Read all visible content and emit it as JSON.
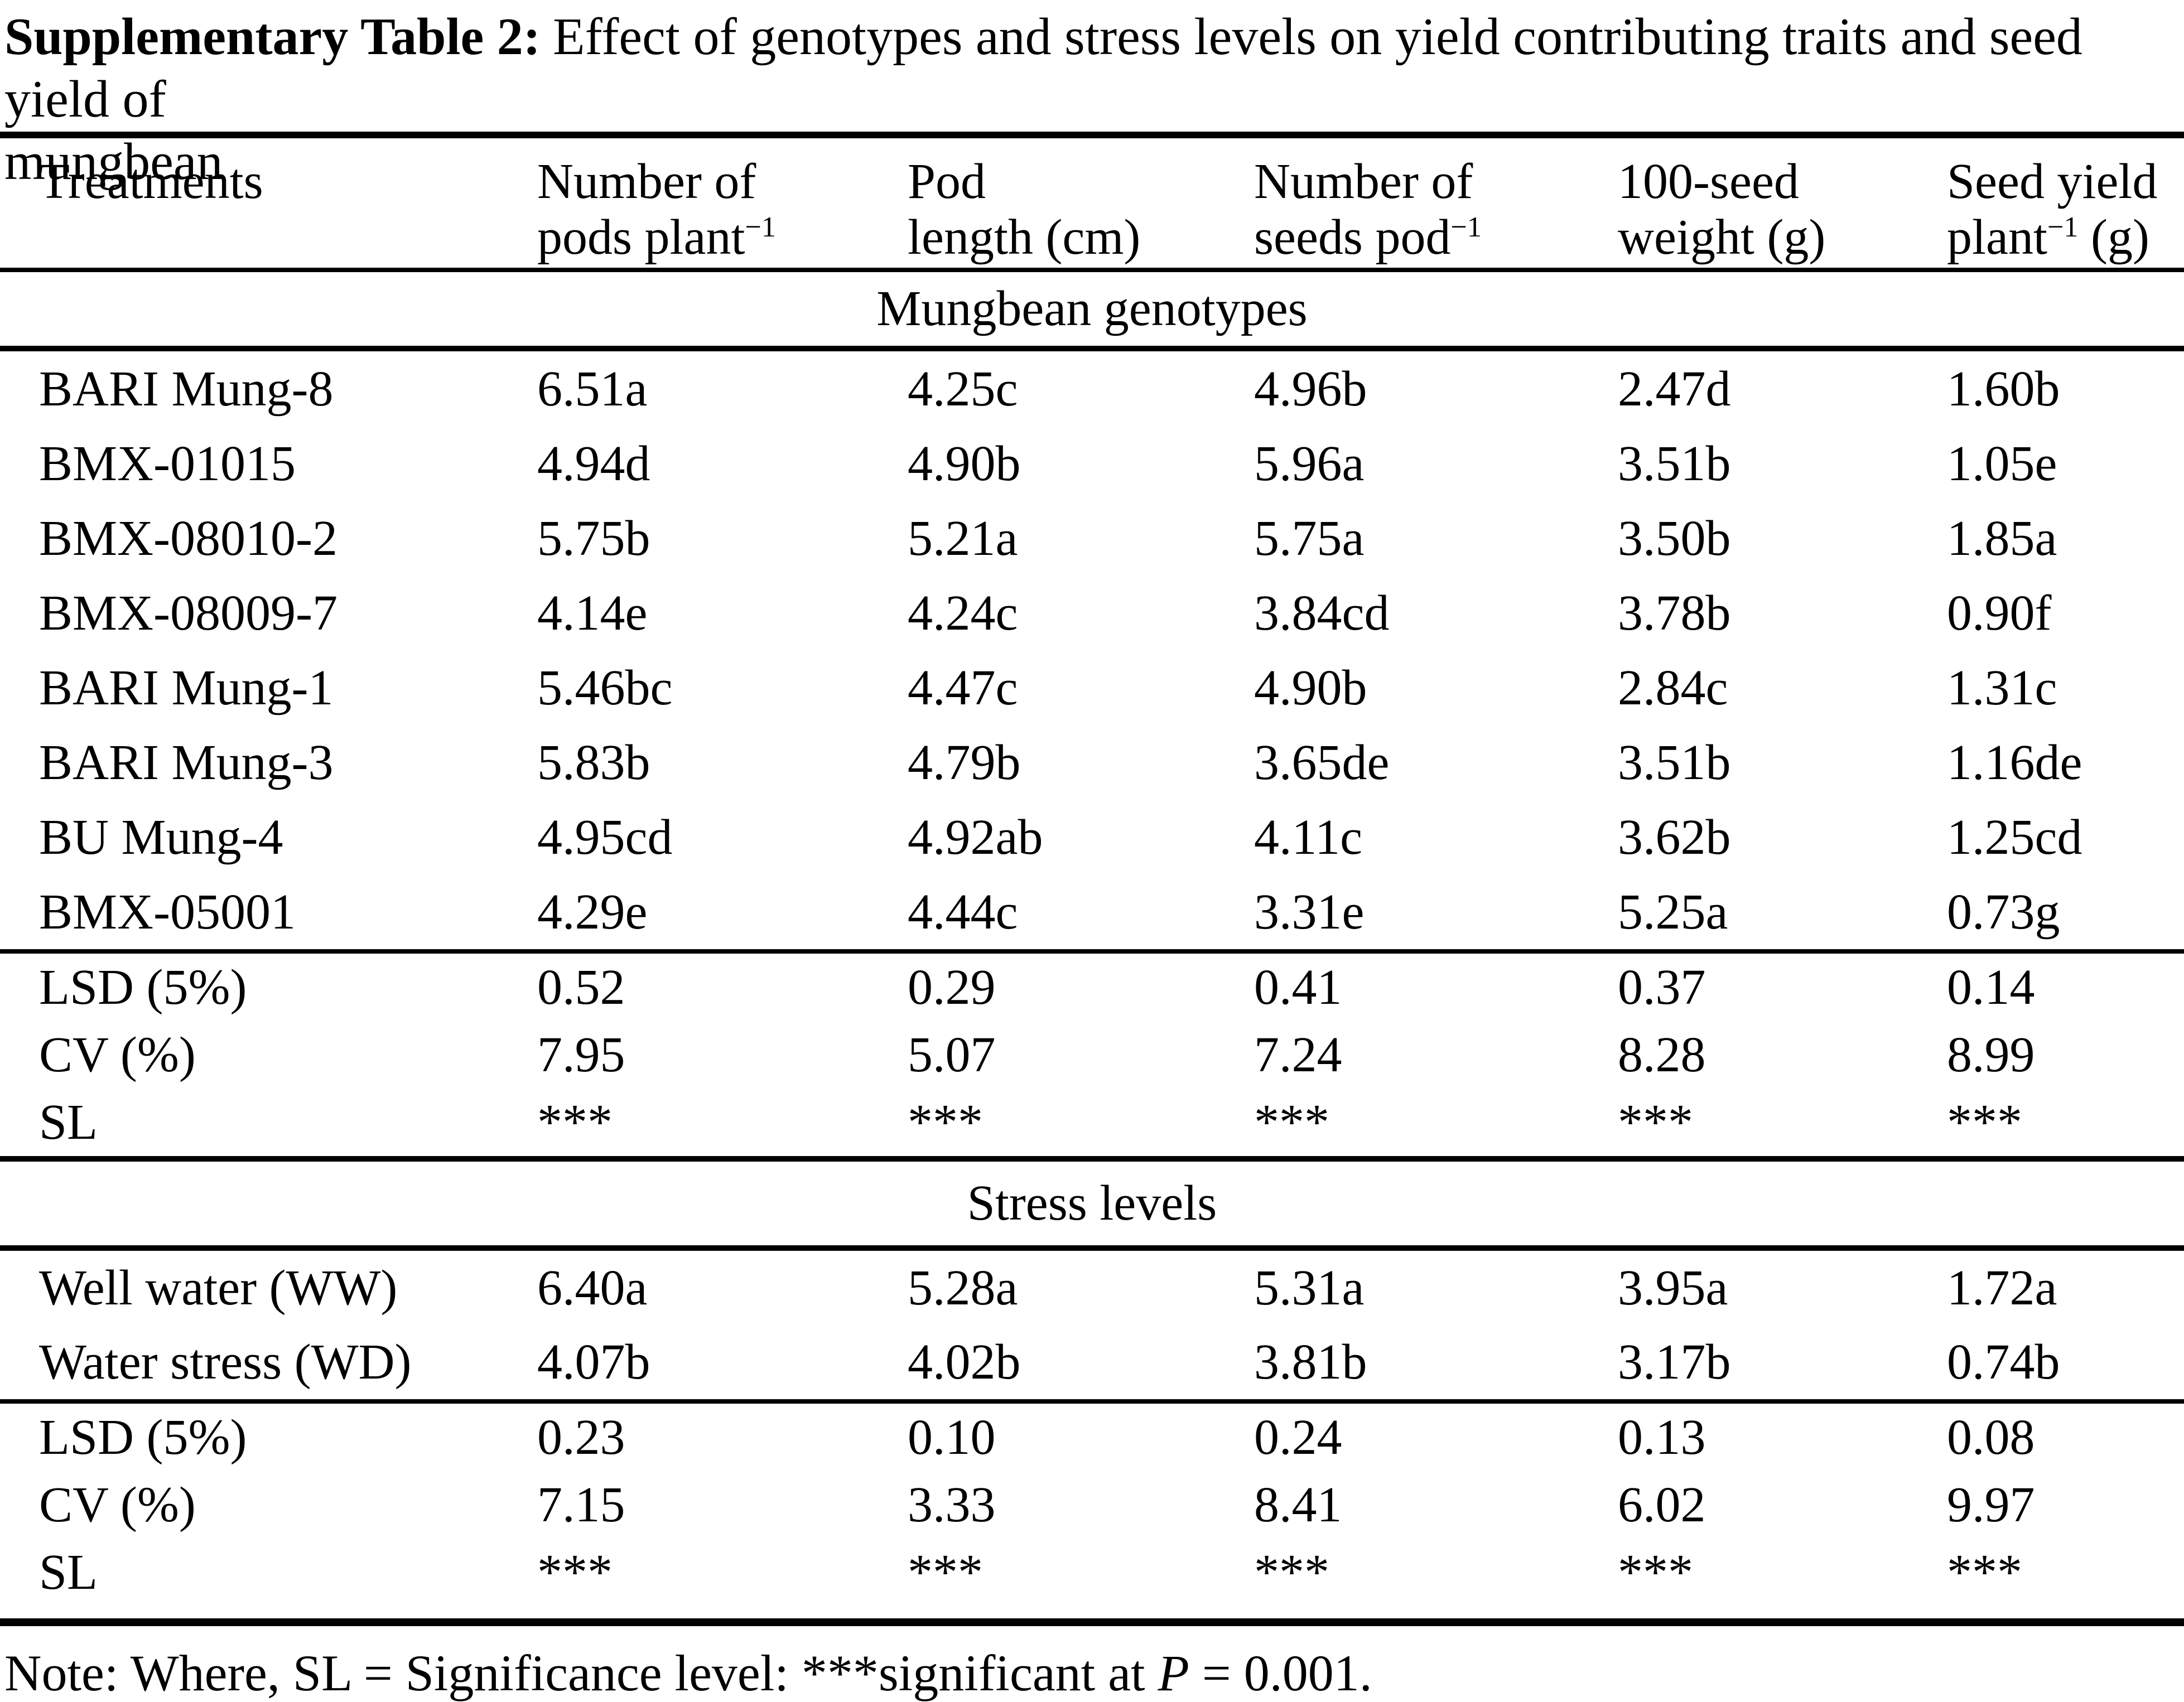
{
  "title": {
    "label": "Supplementary Table 2:",
    "rest_line1": "Effect of genotypes and stress levels on yield contributing traits and seed yield of",
    "rest_line2": "mungbean"
  },
  "table": {
    "headers": {
      "col0": {
        "line1": "Treatments",
        "line2": "",
        "sup": "",
        "post": ""
      },
      "col1": {
        "line1": "Number of",
        "line2": "pods plant",
        "sup": "−1",
        "post": ""
      },
      "col2": {
        "line1": "Pod",
        "line2": "length (cm)",
        "sup": "",
        "post": ""
      },
      "col3": {
        "line1": "Number of",
        "line2": "seeds pod",
        "sup": "−1",
        "post": ""
      },
      "col4": {
        "line1": "100-seed",
        "line2": "weight (g)",
        "sup": "",
        "post": ""
      },
      "col5": {
        "line1": "Seed yield",
        "line2": "plant",
        "sup": "−1",
        "post": " (g)"
      }
    },
    "section1": {
      "title": "Mungbean genotypes"
    },
    "section2": {
      "title": "Stress levels"
    },
    "genotypes": [
      {
        "name": "BARI Mung-8",
        "v": [
          "6.51a",
          "4.25c",
          "4.96b",
          "2.47d",
          "1.60b"
        ]
      },
      {
        "name": "BMX-01015",
        "v": [
          "4.94d",
          "4.90b",
          "5.96a",
          "3.51b",
          "1.05e"
        ]
      },
      {
        "name": "BMX-08010-2",
        "v": [
          "5.75b",
          "5.21a",
          "5.75a",
          "3.50b",
          "1.85a"
        ]
      },
      {
        "name": "BMX-08009-7",
        "v": [
          "4.14e",
          "4.24c",
          "3.84cd",
          "3.78b",
          "0.90f"
        ]
      },
      {
        "name": "BARI Mung-1",
        "v": [
          "5.46bc",
          "4.47c",
          "4.90b",
          "2.84c",
          "1.31c"
        ]
      },
      {
        "name": "BARI Mung-3",
        "v": [
          "5.83b",
          "4.79b",
          "3.65de",
          "3.51b",
          "1.16de"
        ]
      },
      {
        "name": "BU Mung-4",
        "v": [
          "4.95cd",
          "4.92ab",
          "4.11c",
          "3.62b",
          "1.25cd"
        ]
      },
      {
        "name": "BMX-05001",
        "v": [
          "4.29e",
          "4.44c",
          "3.31e",
          "5.25a",
          "0.73g"
        ]
      }
    ],
    "genotype_stats": [
      {
        "name": "LSD (5%)",
        "v": [
          "0.52",
          "0.29",
          "0.41",
          "0.37",
          "0.14"
        ]
      },
      {
        "name": "CV (%)",
        "v": [
          "7.95",
          "5.07",
          "7.24",
          "8.28",
          "8.99"
        ]
      },
      {
        "name": "SL",
        "v": [
          "***",
          "***",
          "***",
          "***",
          "***"
        ]
      }
    ],
    "stress_levels": [
      {
        "name": "Well water (WW)",
        "v": [
          "6.40a",
          "5.28a",
          "5.31a",
          "3.95a",
          "1.72a"
        ]
      },
      {
        "name": "Water stress (WD)",
        "v": [
          "4.07b",
          "4.02b",
          "3.81b",
          "3.17b",
          "0.74b"
        ]
      }
    ],
    "stress_stats": [
      {
        "name": "LSD (5%)",
        "v": [
          "0.23",
          "0.10",
          "0.24",
          "0.13",
          "0.08"
        ]
      },
      {
        "name": "CV (%)",
        "v": [
          "7.15",
          "3.33",
          "8.41",
          "6.02",
          "9.97"
        ]
      },
      {
        "name": "SL",
        "v": [
          "***",
          "***",
          "***",
          "***",
          "***"
        ]
      }
    ]
  },
  "note": {
    "pre": "Note: Where, SL = Significance level: ***significant at ",
    "italic": "P",
    "post": " = 0.001."
  }
}
